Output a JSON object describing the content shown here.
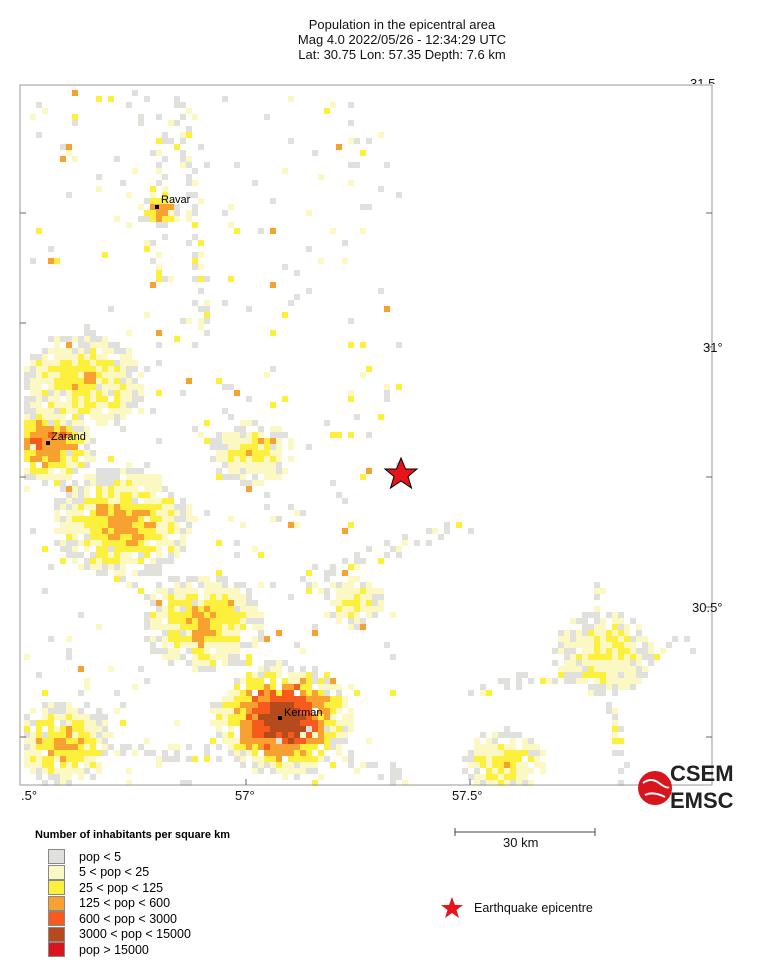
{
  "header": {
    "title": "Population in the epicentral area",
    "line2": "Mag 4.0  2022/05/26 - 12:34:29 UTC",
    "line3": "Lat: 30.75    Lon:  57.35     Depth:  7.6 km"
  },
  "axes": {
    "x_ticks": [
      ".5°",
      "57°",
      "57.5°"
    ],
    "y_ticks": [
      "31.5",
      "31°",
      "30.5°"
    ]
  },
  "cities": [
    {
      "name": "Ravar"
    },
    {
      "name": "Zarand"
    },
    {
      "name": "Kerman"
    }
  ],
  "epicentre": {
    "lat": 30.75,
    "lon": 57.35,
    "color": "#e8141c"
  },
  "scale_bar": {
    "label": "30 km"
  },
  "legend": {
    "title": "Number of inhabitants per square km",
    "items": [
      {
        "label": "pop < 5",
        "color": "#e0e0dc"
      },
      {
        "label": "5 < pop < 25",
        "color": "#fbf8c4"
      },
      {
        "label": "25 < pop < 125",
        "color": "#fcf03c"
      },
      {
        "label": "125 < pop < 600",
        "color": "#f8a030"
      },
      {
        "label": "600 < pop < 3000",
        "color": "#f65a1c"
      },
      {
        "label": "3000 < pop < 15000",
        "color": "#b54a1c"
      },
      {
        "label": "pop > 15000",
        "color": "#d8141c"
      }
    ],
    "epicentre_label": "Earthquake epicentre"
  },
  "logo": {
    "text1": "CSEM",
    "text2": "EMSC"
  }
}
